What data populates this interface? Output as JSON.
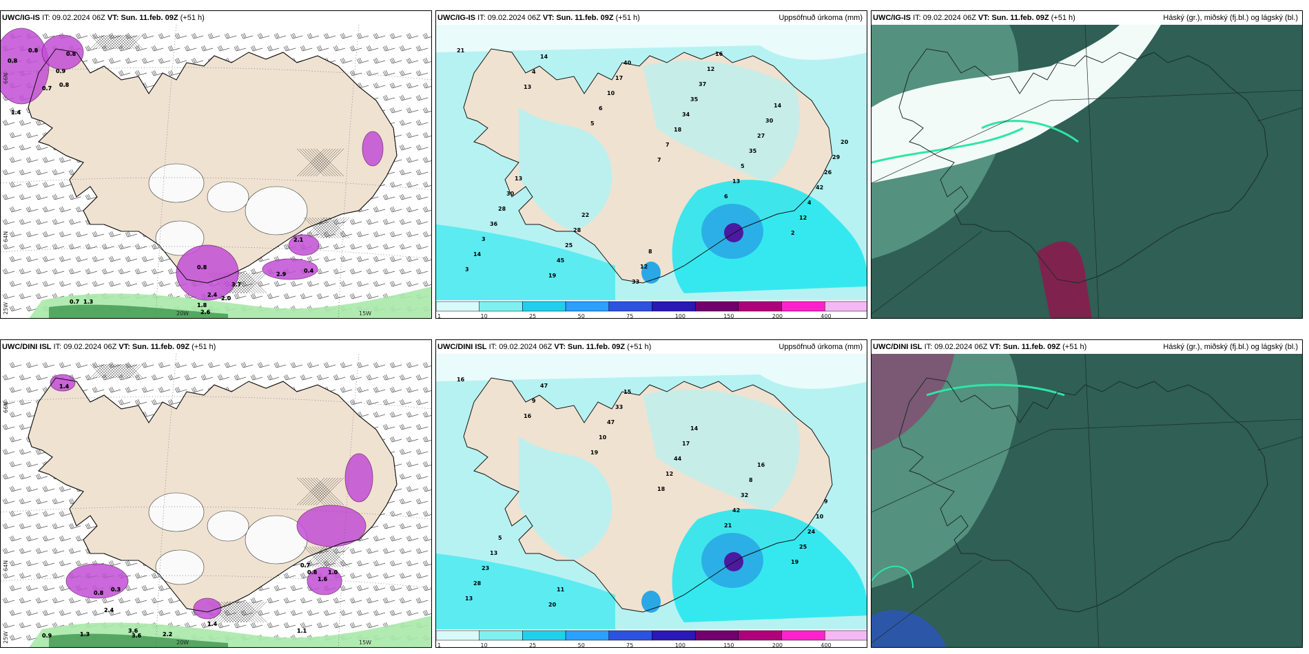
{
  "panels": [
    {
      "id": "ig-wind",
      "title_prefix": "UWC/IG-IS",
      "it": "IT: 09.02.2024 06Z",
      "vt": "VT: Sun. 11.feb. 09Z",
      "lead": "(+51 h)",
      "right": "",
      "values": [
        "0.8",
        "0.8",
        "0.8",
        "0.7",
        "0.9",
        "0.8",
        "1.4",
        "2.9",
        "0.4",
        "3.7",
        "2.4",
        "2.0",
        "1.8",
        "2.6",
        "2.1",
        "0.8",
        "0.7",
        "1.3"
      ],
      "axis": [
        "20W",
        "15W",
        "66N",
        "64N",
        "25W"
      ]
    },
    {
      "id": "ig-precip",
      "title_prefix": "UWC/IG-IS",
      "it": "IT: 09.02.2024 06Z",
      "vt": "VT: Sun. 11.feb. 09Z",
      "lead": "(+51 h)",
      "right": "Uppsöfnuð úrkoma (mm)",
      "values": [
        "21",
        "13",
        "5",
        "7",
        "6",
        "2",
        "3",
        "4",
        "6",
        "7",
        "13",
        "12",
        "14",
        "14",
        "10",
        "18",
        "5",
        "4",
        "3",
        "19",
        "17",
        "34",
        "35",
        "42",
        "36",
        "45",
        "40",
        "35",
        "27",
        "26",
        "28",
        "25",
        "33",
        "37",
        "30",
        "29",
        "30",
        "28",
        "12",
        "12",
        "14",
        "20",
        "13",
        "22",
        "8",
        "16"
      ],
      "colorbar": [
        "1",
        "10",
        "25",
        "50",
        "75",
        "100",
        "150",
        "200",
        "400"
      ]
    },
    {
      "id": "ig-cloud",
      "title_prefix": "UWC/IG-IS",
      "it": "IT: 09.02.2024 06Z",
      "vt": "VT: Sun. 11.feb. 09Z",
      "lead": "(+51 h)",
      "right": "Háský (gr.), miðský (fj.bl.) og lágský (bl.)"
    },
    {
      "id": "dini-wind",
      "title_prefix": "UWC/DINI ISL",
      "it": "IT: 09.02.2024 06Z",
      "vt": "VT: Sun. 11.feb. 09Z",
      "lead": "(+51 h)",
      "right": "",
      "values": [
        "1.4",
        "0.3",
        "0.8",
        "2.4",
        "3.6",
        "3.6",
        "1.3",
        "0.9",
        "2.2",
        "1.1",
        "1.4",
        "1.6",
        "0.8",
        "0.7",
        "1.0"
      ],
      "axis": [
        "20W",
        "15W",
        "66N",
        "64N",
        "25W"
      ]
    },
    {
      "id": "dini-precip",
      "title_prefix": "UWC/DINI ISL",
      "it": "IT: 09.02.2024 06Z",
      "vt": "VT: Sun. 11.feb. 09Z",
      "lead": "(+51 h)",
      "right": "Uppsöfnuð úrkoma (mm)",
      "values": [
        "16",
        "16",
        "19",
        "18",
        "21",
        "19",
        "13",
        "9",
        "10",
        "12",
        "42",
        "25",
        "28",
        "47",
        "47",
        "44",
        "32",
        "24",
        "23",
        "20",
        "33",
        "17",
        "8",
        "10",
        "13",
        "11",
        "15",
        "14",
        "16",
        "9",
        "5"
      ],
      "colorbar": [
        "1",
        "10",
        "25",
        "50",
        "75",
        "100",
        "150",
        "200",
        "400"
      ]
    },
    {
      "id": "dini-cloud",
      "title_prefix": "UWC/DINI ISL",
      "it": "IT: 09.02.2024 06Z",
      "vt": "VT: Sun. 11.feb. 09Z",
      "lead": "(+51 h)",
      "right": "Háský (gr.), miðský (fj.bl.) og lágský (bl.)"
    }
  ],
  "colors": {
    "land": "#efe2d1",
    "sea_precip": "#b6f2f2",
    "cyan": "#1fe6f0",
    "mid_blue": "#2aa8e6",
    "purple": "#c34fd6",
    "magenta": "#ff30c0",
    "cloud_dark": "#2f5f55",
    "cloud_mid": "#5a9a86",
    "cloud_green": "#2ee6a6"
  },
  "colorbar_colors": [
    "#d8fafa",
    "#7ff0f0",
    "#1fd0ee",
    "#2aa0ff",
    "#2b52e0",
    "#2a18b8",
    "#72006e",
    "#b0007c",
    "#ff22cc",
    "#f5b8f5"
  ]
}
